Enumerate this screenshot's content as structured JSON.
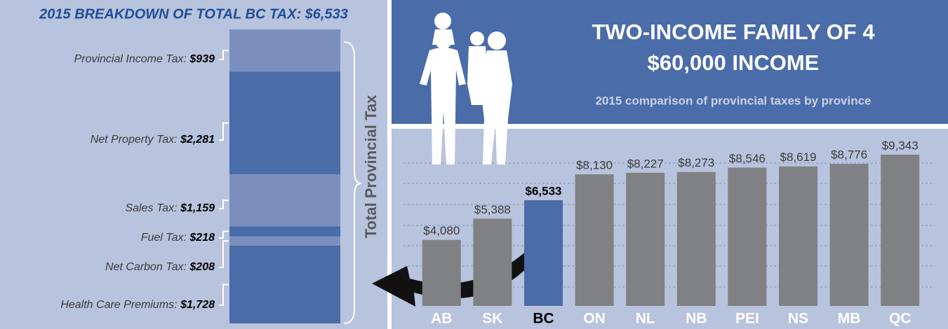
{
  "chart_data": [
    {
      "type": "stacked-breakdown",
      "title": "2015 BREAKDOWN OF TOTAL BC TAX: $6,533",
      "annotation": "Total Provincial Tax",
      "categories": [
        "Provincial Income Tax:",
        "Net Property Tax:",
        "Sales Tax:",
        "Fuel Tax:",
        "Net Carbon Tax:",
        "Health Care Premiums:"
      ],
      "values": [
        939,
        2281,
        1159,
        218,
        208,
        1728
      ],
      "value_labels": [
        "$939",
        "$2,281",
        "$1,159",
        "$218",
        "$208",
        "$1,728"
      ],
      "colors": [
        "#7b8fbf",
        "#4a6ca8",
        "#7b8fbf",
        "#4a6ca8",
        "#7b8fbf",
        "#4a6ca8"
      ]
    },
    {
      "type": "bar",
      "title": [
        "TWO-INCOME FAMILY OF 4",
        "$60,000 INCOME"
      ],
      "subtitle": "2015 comparison of provincial taxes by province",
      "categories": [
        "AB",
        "SK",
        "BC",
        "ON",
        "NL",
        "NB",
        "PEI",
        "NS",
        "MB",
        "QC"
      ],
      "values": [
        4080,
        5388,
        6533,
        8130,
        8227,
        8273,
        8546,
        8619,
        8776,
        9343
      ],
      "value_labels": [
        "$4,080",
        "$5,388",
        "$6,533",
        "$8,130",
        "$8,227",
        "$8,273",
        "$8,546",
        "$8,619",
        "$8,776",
        "$9,343"
      ],
      "colors": [
        "#808184",
        "#808184",
        "#4a6ca8",
        "#808184",
        "#808184",
        "#808184",
        "#808184",
        "#808184",
        "#808184",
        "#808184"
      ],
      "highlight_color": "#4a6ca8"
    }
  ]
}
